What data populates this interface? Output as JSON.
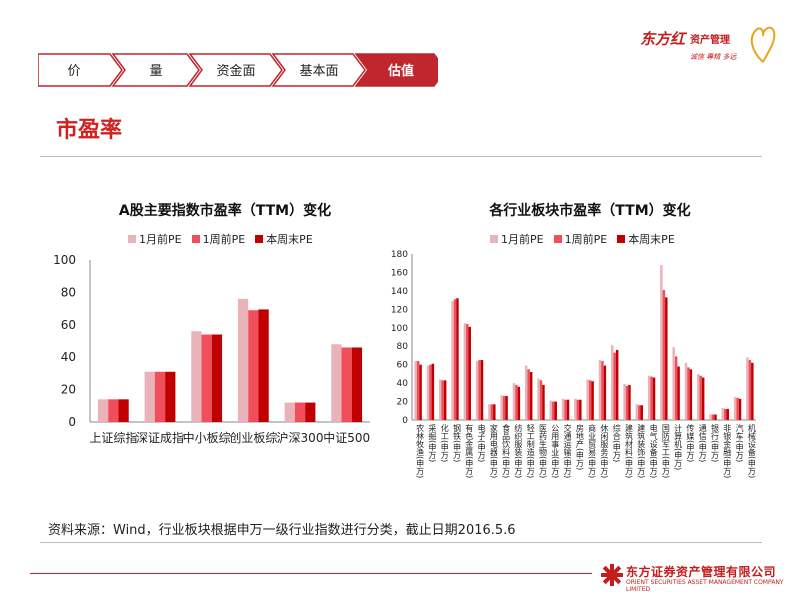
{
  "nav": {
    "tabs": [
      {
        "label": "价",
        "active": false
      },
      {
        "label": "量",
        "active": false
      },
      {
        "label": "资金面",
        "active": false
      },
      {
        "label": "基本面",
        "active": false
      },
      {
        "label": "估值",
        "active": true
      }
    ]
  },
  "brand": {
    "name": "东方红",
    "sub": "资产管理",
    "slogan": "诚信 專精 多远"
  },
  "page": {
    "title": "市盈率"
  },
  "colors": {
    "accent": "#d0201f",
    "pe_1m": "#e9b3b9",
    "pe_1w": "#f04e5b",
    "pe_now": "#c00000"
  },
  "chart_data": [
    {
      "type": "bar",
      "title": "A股主要指数市盈率（TTM）变化",
      "categories": [
        "上证综指",
        "深证成指",
        "中小板综",
        "创业板综",
        "沪深300",
        "中证500"
      ],
      "series": [
        {
          "name": "1月前PE",
          "values": [
            14,
            31,
            56,
            76,
            12,
            48
          ]
        },
        {
          "name": "1周前PE",
          "values": [
            14,
            31,
            54,
            69,
            12,
            46
          ]
        },
        {
          "name": "本周末PE",
          "values": [
            14,
            31,
            54,
            69.5,
            12,
            46
          ]
        }
      ],
      "ylim": [
        0,
        100
      ],
      "yticks": [
        0,
        20,
        40,
        60,
        80,
        100
      ],
      "legend": "top"
    },
    {
      "type": "bar",
      "title": "各行业板块市盈率（TTM）变化",
      "categories": [
        "农林牧渔(申万)",
        "采掘(申万)",
        "化工(申万)",
        "钢铁(申万)",
        "有色金属(申万)",
        "电子(申万)",
        "家用电器(申万)",
        "食品饮料(申万)",
        "纺织服装(申万)",
        "轻工制造(申万)",
        "医药生物(申万)",
        "公用事业(申万)",
        "交通运输(申万)",
        "房地产(申万)",
        "商业贸易(申万)",
        "休闲服务(申万)",
        "综合(申万)",
        "建筑材料(申万)",
        "建筑装饰(申万)",
        "电气设备(申万)",
        "国防军工(申万)",
        "计算机(申万)",
        "传媒(申万)",
        "通信(申万)",
        "银行(申万)",
        "非银金融(申万)",
        "汽车(申万)",
        "机械设备(申万)"
      ],
      "series": [
        {
          "name": "1月前PE",
          "values": [
            64,
            59,
            44,
            129,
            105,
            64,
            17,
            27,
            40,
            59,
            45,
            21,
            23,
            23,
            44,
            65,
            81,
            39,
            17,
            48,
            168,
            79,
            62,
            50,
            6,
            13,
            25,
            68
          ]
        },
        {
          "name": "1周前PE",
          "values": [
            64,
            60,
            43,
            131,
            104,
            65,
            17,
            26,
            38,
            55,
            43,
            20,
            22,
            22,
            43,
            64,
            73,
            37,
            16,
            47,
            141,
            69,
            57,
            48,
            6,
            12,
            24,
            65
          ]
        },
        {
          "name": "本周末PE",
          "values": [
            60,
            61,
            43,
            132,
            101,
            65,
            17,
            26,
            36,
            52,
            38,
            20,
            22,
            22,
            42,
            59,
            76,
            38,
            16,
            46,
            133,
            58,
            55,
            46,
            6,
            12,
            23,
            62
          ]
        }
      ],
      "ylim": [
        0,
        180
      ],
      "yticks": [
        0,
        20,
        40,
        60,
        80,
        100,
        120,
        140,
        160,
        180
      ],
      "legend": "top"
    }
  ],
  "footer": {
    "source": "资料来源：Wind，行业板块根据申万一级行业指数进行分类，截止日期2016.5.6",
    "company": "东方证券资产管理有限公司",
    "company_en": "ORIENT SECURITIES ASSET MANAGEMENT COMPANY LIMITED"
  }
}
